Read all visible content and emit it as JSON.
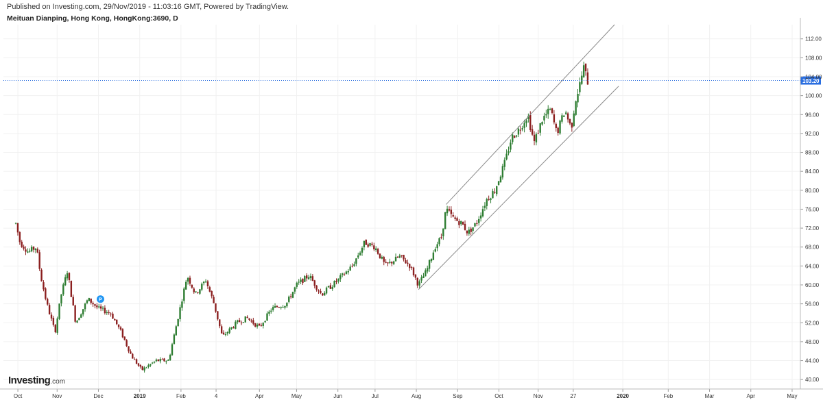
{
  "header": {
    "publish_line": "Published on Investing.com, 29/Nov/2019 - 11:03:16 GMT, Powered by TradingView.",
    "symbol_line": "Meituan Dianping, Hong Kong, HongKong:3690, D"
  },
  "logo": {
    "text": "Investing",
    "suffix": ".com"
  },
  "colors": {
    "up": "#2e7d32",
    "down": "#8b1f1f",
    "wick": "#333333",
    "channel": "#8a8a8a",
    "last_price_bg": "#2a6ee0",
    "last_price_line": "#2a6ee0",
    "grid": "#f1f1f1",
    "marker": "#2196f3"
  },
  "chart_data": {
    "type": "candlestick",
    "title": "Meituan Dianping, Hong Kong, HongKong:3690, D",
    "grid": true,
    "ylim": [
      38,
      115
    ],
    "y_ticks": [
      "40.00",
      "44.00",
      "48.00",
      "52.00",
      "56.00",
      "60.00",
      "64.00",
      "68.00",
      "72.00",
      "76.00",
      "80.00",
      "84.00",
      "88.00",
      "92.00",
      "96.00",
      "100.00",
      "104.00",
      "108.00",
      "112.00"
    ],
    "x_ticks": [
      {
        "label": "Oct",
        "t": 0.05
      },
      {
        "label": "Nov",
        "t": 1.0
      },
      {
        "label": "Dec",
        "t": 2.0
      },
      {
        "label": "2019",
        "t": 3.0
      },
      {
        "label": "Feb",
        "t": 4.0
      },
      {
        "label": "4",
        "t": 4.85
      },
      {
        "label": "Apr",
        "t": 5.9
      },
      {
        "label": "May",
        "t": 6.8
      },
      {
        "label": "Jun",
        "t": 7.8
      },
      {
        "label": "Jul",
        "t": 8.7
      },
      {
        "label": "Aug",
        "t": 9.7
      },
      {
        "label": "Sep",
        "t": 10.7
      },
      {
        "label": "Oct",
        "t": 11.7
      },
      {
        "label": "Nov",
        "t": 12.65
      },
      {
        "label": "27",
        "t": 13.5
      },
      {
        "label": "2020",
        "t": 14.7
      },
      {
        "label": "Feb",
        "t": 15.8
      },
      {
        "label": "Mar",
        "t": 16.8
      },
      {
        "label": "Apr",
        "t": 17.8
      },
      {
        "label": "May",
        "t": 18.8
      }
    ],
    "x_range": [
      -0.3,
      19.0
    ],
    "last_price": 103.2,
    "last_price_label": "103.20",
    "price_path": [
      {
        "t": 0.0,
        "p": 73
      },
      {
        "t": 0.1,
        "p": 69
      },
      {
        "t": 0.3,
        "p": 67
      },
      {
        "t": 0.5,
        "p": 68
      },
      {
        "t": 0.6,
        "p": 62
      },
      {
        "t": 0.75,
        "p": 56
      },
      {
        "t": 0.95,
        "p": 50
      },
      {
        "t": 1.1,
        "p": 58
      },
      {
        "t": 1.25,
        "p": 63
      },
      {
        "t": 1.45,
        "p": 52
      },
      {
        "t": 1.75,
        "p": 57
      },
      {
        "t": 2.0,
        "p": 55
      },
      {
        "t": 2.3,
        "p": 54
      },
      {
        "t": 2.55,
        "p": 50
      },
      {
        "t": 2.8,
        "p": 45
      },
      {
        "t": 3.05,
        "p": 42
      },
      {
        "t": 3.4,
        "p": 44
      },
      {
        "t": 3.7,
        "p": 44
      },
      {
        "t": 3.95,
        "p": 54
      },
      {
        "t": 4.15,
        "p": 62
      },
      {
        "t": 4.35,
        "p": 58
      },
      {
        "t": 4.6,
        "p": 61
      },
      {
        "t": 4.8,
        "p": 56
      },
      {
        "t": 5.0,
        "p": 49
      },
      {
        "t": 5.35,
        "p": 52
      },
      {
        "t": 5.6,
        "p": 53
      },
      {
        "t": 5.9,
        "p": 51
      },
      {
        "t": 6.2,
        "p": 55
      },
      {
        "t": 6.55,
        "p": 56
      },
      {
        "t": 6.8,
        "p": 60
      },
      {
        "t": 7.1,
        "p": 62
      },
      {
        "t": 7.4,
        "p": 58
      },
      {
        "t": 7.8,
        "p": 61
      },
      {
        "t": 8.15,
        "p": 64
      },
      {
        "t": 8.45,
        "p": 69
      },
      {
        "t": 8.7,
        "p": 68
      },
      {
        "t": 8.95,
        "p": 64
      },
      {
        "t": 9.3,
        "p": 66
      },
      {
        "t": 9.55,
        "p": 64
      },
      {
        "t": 9.75,
        "p": 60
      },
      {
        "t": 9.95,
        "p": 63
      },
      {
        "t": 10.15,
        "p": 68
      },
      {
        "t": 10.3,
        "p": 70
      },
      {
        "t": 10.42,
        "p": 76
      },
      {
        "t": 10.6,
        "p": 74
      },
      {
        "t": 10.8,
        "p": 73
      },
      {
        "t": 10.95,
        "p": 71
      },
      {
        "t": 11.15,
        "p": 73
      },
      {
        "t": 11.4,
        "p": 78
      },
      {
        "t": 11.6,
        "p": 80
      },
      {
        "t": 11.85,
        "p": 86
      },
      {
        "t": 12.0,
        "p": 91
      },
      {
        "t": 12.2,
        "p": 93
      },
      {
        "t": 12.4,
        "p": 96
      },
      {
        "t": 12.55,
        "p": 90
      },
      {
        "t": 12.75,
        "p": 95
      },
      {
        "t": 12.95,
        "p": 97
      },
      {
        "t": 13.1,
        "p": 92
      },
      {
        "t": 13.3,
        "p": 97
      },
      {
        "t": 13.45,
        "p": 93
      },
      {
        "t": 13.55,
        "p": 99
      },
      {
        "t": 13.65,
        "p": 102
      },
      {
        "t": 13.75,
        "p": 106
      },
      {
        "t": 13.85,
        "p": 103
      }
    ],
    "channel": {
      "upper": {
        "start": {
          "t": 10.42,
          "p": 77
        },
        "end": {
          "t": 14.5,
          "p": 115
        }
      },
      "lower": {
        "start": {
          "t": 9.75,
          "p": 59
        },
        "end": {
          "t": 14.6,
          "p": 102
        }
      }
    },
    "marker": {
      "t": 2.05,
      "p": 57,
      "label": "P"
    }
  }
}
